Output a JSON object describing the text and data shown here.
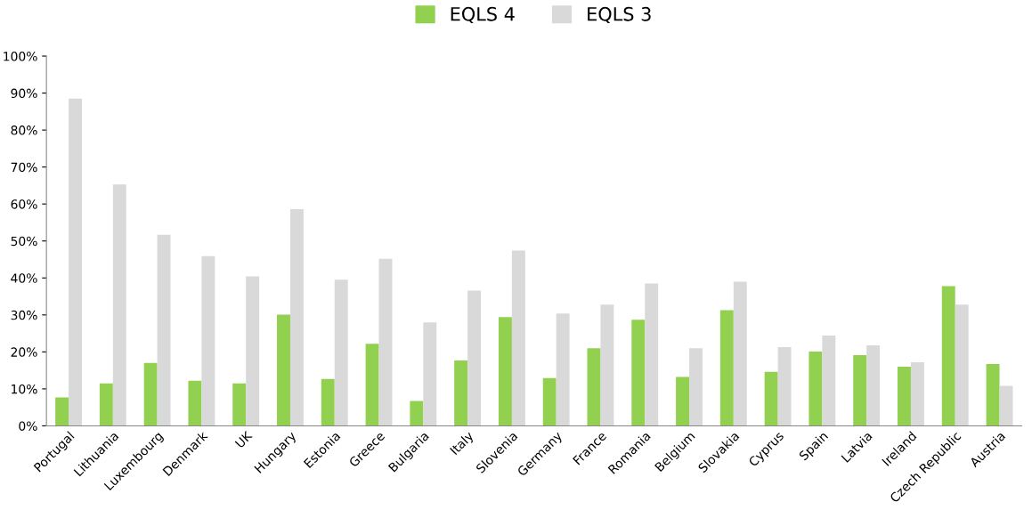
{
  "chart_data": {
    "type": "bar",
    "categories": [
      "Portugal",
      "Lithuania",
      "Luxembourg",
      "Denmark",
      "UK",
      "Hungary",
      "Estonia",
      "Greece",
      "Bulgaria",
      "Italy",
      "Slovenia",
      "Germany",
      "France",
      "Romania",
      "Belgium",
      "Slovakia",
      "Cyprus",
      "Spain",
      "Latvia",
      "Ireland",
      "Czech Republic",
      "Austria"
    ],
    "series": [
      {
        "name": "EQLS 4",
        "color": "#92d050",
        "values": [
          7.7,
          11.5,
          17,
          12.2,
          11.5,
          30.1,
          12.7,
          22.2,
          6.7,
          17.7,
          29.4,
          12.9,
          21,
          28.7,
          13.2,
          31.3,
          14.6,
          20.1,
          19.1,
          16,
          37.8,
          16.7
        ]
      },
      {
        "name": "EQLS 3",
        "color": "#d9d9d9",
        "values": [
          88.5,
          65.3,
          51.7,
          45.9,
          40.4,
          58.6,
          39.5,
          45.2,
          28,
          36.6,
          47.4,
          30.4,
          32.8,
          38.5,
          21,
          39,
          21.3,
          24.4,
          21.8,
          17.2,
          32.8,
          10.8
        ]
      }
    ],
    "ylim": [
      0,
      100
    ],
    "yticks": [
      {
        "value": 0,
        "label": "0%"
      },
      {
        "value": 10,
        "label": "10%"
      },
      {
        "value": 20,
        "label": "20%"
      },
      {
        "value": 30,
        "label": "30%"
      },
      {
        "value": 40,
        "label": "40%"
      },
      {
        "value": 50,
        "label": "50%"
      },
      {
        "value": 60,
        "label": "60%"
      },
      {
        "value": 70,
        "label": "70%"
      },
      {
        "value": 80,
        "label": "80%"
      },
      {
        "value": 90,
        "label": "90%"
      },
      {
        "value": 100,
        "label": "100%"
      }
    ],
    "grid": false,
    "legend": "top"
  }
}
